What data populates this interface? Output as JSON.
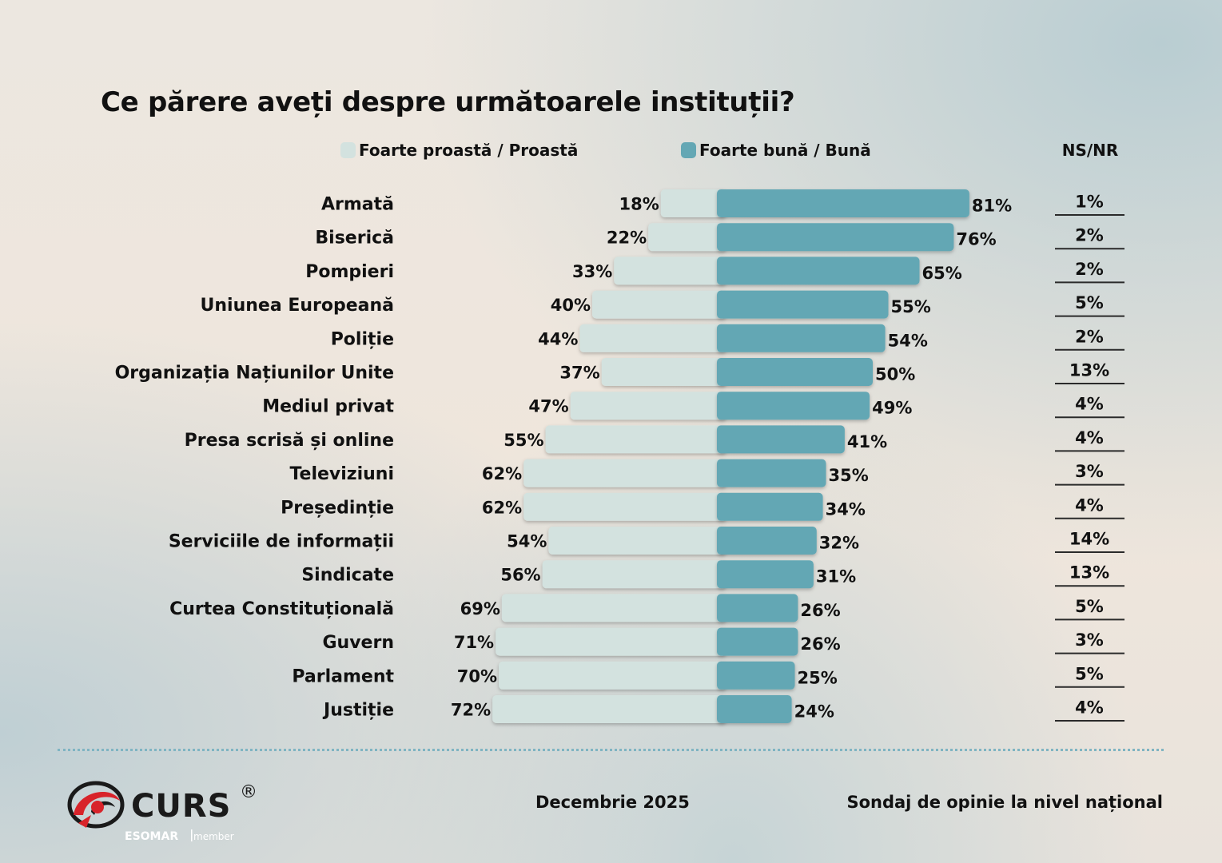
{
  "title": "Ce părere aveți despre următoarele instituții?",
  "legend": {
    "negative": "Foarte proastă / Proastă",
    "positive": "Foarte bună / Bună",
    "nsnr": "NS/NR"
  },
  "colors": {
    "negative": "#d3e2df",
    "positive": "#64a7b4",
    "rule": "#2a2a2a",
    "logo_red": "#d8232a"
  },
  "chart_data": {
    "type": "bar",
    "title": "Ce părere aveți despre următoarele instituții?",
    "categories": [
      "Armată",
      "Biserică",
      "Pompieri",
      "Uniunea Europeană",
      "Poliție",
      "Organizația Națiunilor Unite",
      "Mediul privat",
      "Presa scrisă  și online",
      "Televiziuni",
      "Președinție",
      "Serviciile de informații",
      "Sindicate",
      "Curtea Constituțională",
      "Guvern",
      "Parlament",
      "Justiție"
    ],
    "series": [
      {
        "name": "Foarte proastă / Proastă",
        "values": [
          18,
          22,
          33,
          40,
          44,
          37,
          47,
          55,
          62,
          62,
          54,
          56,
          69,
          71,
          70,
          72
        ]
      },
      {
        "name": "Foarte bună / Bună",
        "values": [
          81,
          76,
          65,
          55,
          54,
          50,
          49,
          41,
          35,
          34,
          32,
          31,
          26,
          26,
          25,
          24
        ]
      },
      {
        "name": "NS/NR",
        "values": [
          1,
          2,
          2,
          5,
          2,
          13,
          4,
          4,
          3,
          4,
          14,
          13,
          5,
          3,
          5,
          4
        ]
      }
    ],
    "unit": "%",
    "legend": "top",
    "grid": false
  },
  "footer": {
    "logo_text": "CURS",
    "logo_mark": "®",
    "esomar": "ESOMAR",
    "member": "member",
    "date": "Decembrie 2025",
    "note": "Sondaj de opinie la nivel național"
  }
}
